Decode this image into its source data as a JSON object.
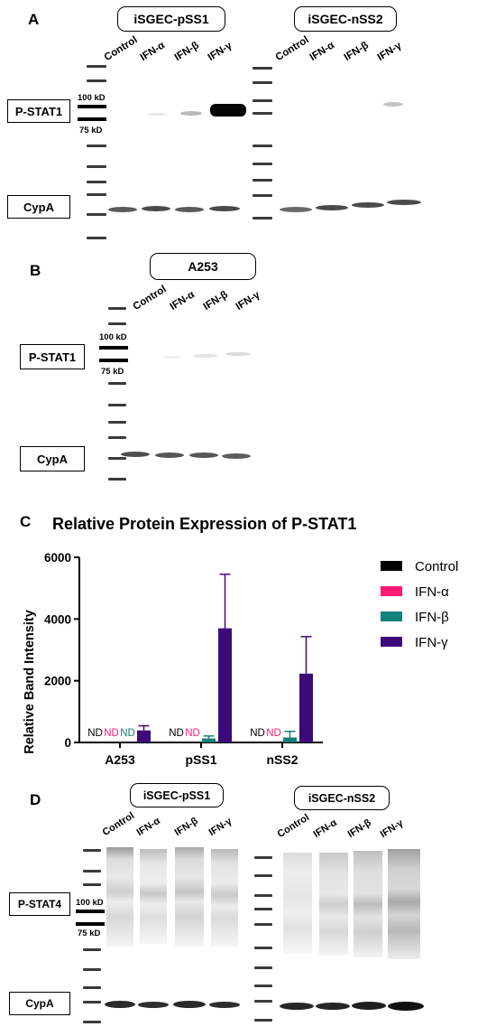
{
  "panels": {
    "A": {
      "letter": "A",
      "groups": [
        "iSGEC-pSS1",
        "iSGEC-nSS2"
      ],
      "lanes": [
        "Control",
        "IFN-α",
        "IFN-β",
        "IFN-γ"
      ],
      "row_labels": [
        "P-STAT1",
        "CypA"
      ],
      "markers": [
        "100 kD",
        "75 kD"
      ]
    },
    "B": {
      "letter": "B",
      "group": "A253",
      "lanes": [
        "Control",
        "IFN-α",
        "IFN-β",
        "IFN-γ"
      ],
      "row_labels": [
        "P-STAT1",
        "CypA"
      ],
      "markers": [
        "100 kD",
        "75 kD"
      ]
    },
    "D": {
      "letter": "D",
      "groups": [
        "iSGEC-pSS1",
        "iSGEC-nSS2"
      ],
      "lanes": [
        "Control",
        "IFN-α",
        "IFN-β",
        "IFN-γ"
      ],
      "row_labels": [
        "P-STAT4",
        "CypA"
      ],
      "markers": [
        "100 kD",
        "75 kD"
      ]
    }
  },
  "chart_data": {
    "panel_letter": "C",
    "type": "bar",
    "title": "Relative Protein Expression of P-STAT1",
    "ylabel": "Relative Band Intensity",
    "xlabel": "",
    "ylim": [
      0,
      6000
    ],
    "yticks": [
      "0",
      "2000",
      "4000",
      "6000"
    ],
    "categories": [
      "A253",
      "pSS1",
      "nSS2"
    ],
    "legend_position": "right",
    "nd_label": "ND",
    "series": [
      {
        "name": "Control",
        "color": "#000000",
        "values": [
          0,
          0,
          0
        ],
        "errors": [
          0,
          0,
          0
        ],
        "nd": [
          true,
          true,
          true
        ]
      },
      {
        "name": "IFN-α",
        "color": "#ff1a75",
        "values": [
          0,
          0,
          0
        ],
        "errors": [
          0,
          0,
          0
        ],
        "nd": [
          true,
          true,
          true
        ]
      },
      {
        "name": "IFN-β",
        "color": "#138079",
        "values": [
          0,
          130,
          160
        ],
        "errors": [
          0,
          80,
          200
        ],
        "nd": [
          true,
          false,
          false
        ]
      },
      {
        "name": "IFN-γ",
        "color": "#3d0a7a",
        "values": [
          390,
          3700,
          2230
        ],
        "errors": [
          150,
          1750,
          1200
        ],
        "nd": [
          false,
          false,
          false
        ]
      }
    ]
  }
}
